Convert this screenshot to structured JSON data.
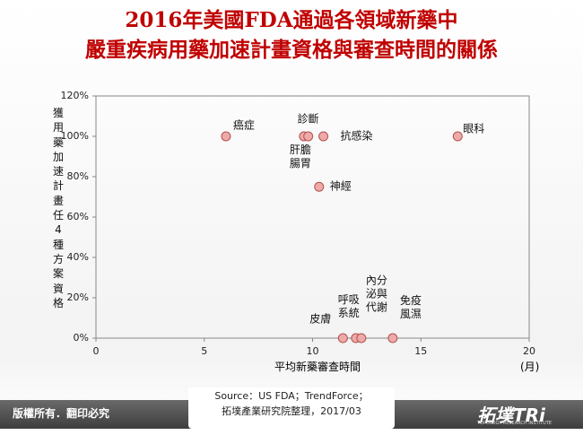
{
  "chart_data": {
    "type": "scatter",
    "title": "2016年美國FDA通過各領域新藥中\n嚴重疾病用藥加速計畫資格與審查時間的關係",
    "y_label": "獲用藥加速計畫任4種方案資格",
    "x_label": "平均新藥審查時間",
    "x_unit": "(月)",
    "labels": [
      "癌症",
      "肝膽腸胃",
      "診斷",
      "抗感染",
      "神經",
      "眼科",
      "皮膚",
      "呼吸系統",
      "內分泌與代謝",
      "免疫風濕"
    ],
    "x": [
      6.0,
      9.6,
      9.8,
      10.5,
      10.3,
      16.7,
      11.4,
      12.0,
      12.25,
      13.7
    ],
    "values": [
      100,
      100,
      100,
      100,
      75,
      100,
      0,
      0,
      0,
      0
    ],
    "color": "#eeaaa8",
    "edge_color": "#b2504e",
    "xlim": [
      0,
      20
    ],
    "xticks": [
      0,
      5,
      10,
      15,
      20
    ],
    "ylim": [
      0,
      120
    ],
    "yticks": [
      {
        "value": 0,
        "label": "0%"
      },
      {
        "value": 20,
        "label": "20%"
      },
      {
        "value": 40,
        "label": "40%"
      },
      {
        "value": 60,
        "label": "60%"
      },
      {
        "value": 80,
        "label": "80%"
      },
      {
        "value": 100,
        "label": "100%"
      },
      {
        "value": 120,
        "label": "120%"
      }
    ],
    "source": [
      "Source：US FDA；TrendForce；",
      "拓墣產業研究院整理，2017/03"
    ]
  },
  "footer": {
    "copyright": "版權所有．翻印必究",
    "logo": "拓墣TRi",
    "logo_sub": "TOPOLOGY RESEARCH INSTITUTE"
  }
}
